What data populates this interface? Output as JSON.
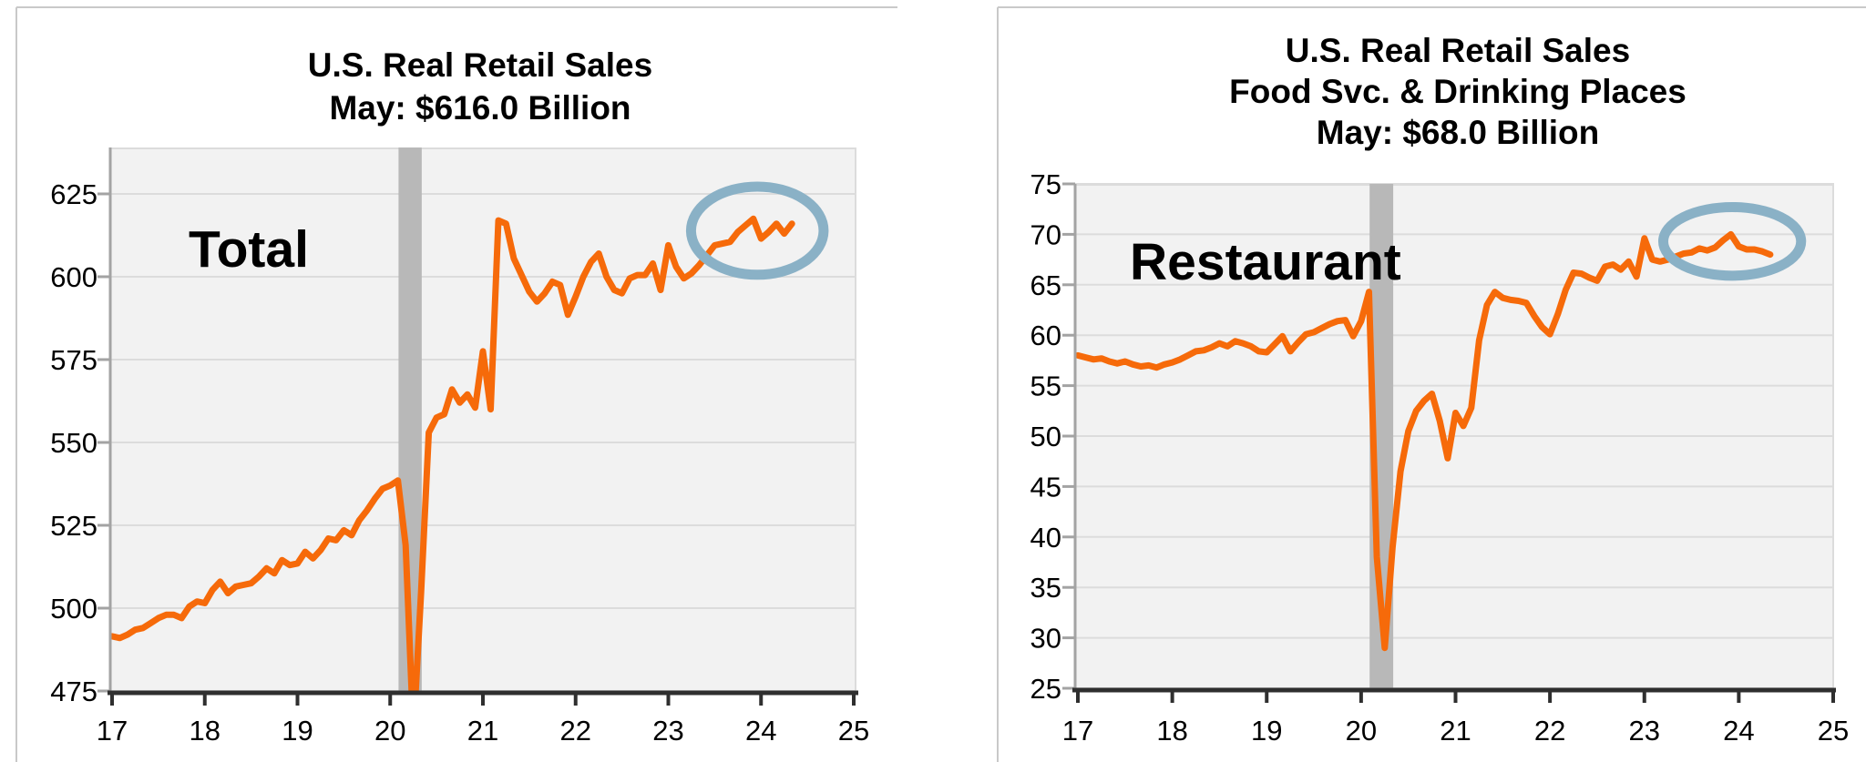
{
  "page": {
    "background": "#FFFFFF",
    "cell_border_color": "#C9C9C9",
    "plot_background": "#F2F2F2",
    "gridline_color": "#DCDCDC",
    "x_axis_color": "#2F2F2F",
    "y_axis_color": "#A3A3A3"
  },
  "chart_data": [
    {
      "type": "line",
      "title_lines": [
        "U.S. Real Retail Sales",
        "May: $616.0 Billion"
      ],
      "series_label": "Total",
      "series_name": "U.S. Real Retail Sales, Total, $ Billions, monthly",
      "x_start": "2017-01",
      "x_end": "2024-05",
      "x_frequency": "monthly",
      "latest": {
        "month": "May",
        "value_billions": 616.0
      },
      "xlim": [
        17,
        25
      ],
      "ylim": [
        475,
        639
      ],
      "xticks": [
        17,
        18,
        19,
        20,
        21,
        22,
        23,
        24,
        25
      ],
      "yticks": [
        475,
        500,
        525,
        550,
        575,
        600,
        625
      ],
      "grid": true,
      "line_color": "#F66A0A",
      "values": [
        491.5,
        491,
        492,
        493.5,
        494,
        495.5,
        497,
        498,
        498,
        497,
        500.5,
        502,
        501.5,
        505.5,
        508,
        504.5,
        506.5,
        507,
        507.5,
        509.5,
        512,
        510.5,
        514.5,
        513,
        513.5,
        517,
        515,
        517.5,
        521,
        520.5,
        523.5,
        522,
        526.5,
        529.5,
        533,
        536,
        537,
        538.5,
        519,
        462,
        505,
        553,
        557.5,
        558.5,
        566,
        562,
        564.5,
        560.5,
        577.5,
        560,
        617,
        616,
        605.5,
        600.5,
        595.5,
        592.5,
        595,
        598.5,
        597.5,
        588.5,
        594,
        600,
        604.5,
        607,
        600,
        596,
        595,
        599.5,
        600.5,
        600.5,
        604,
        596,
        609.5,
        603,
        599.5,
        601,
        603.5,
        606.5,
        609.5,
        610,
        610.5,
        613.5,
        615.5,
        617.5,
        611.5,
        613.5,
        616,
        613,
        616
      ],
      "recession_band": {
        "x_from": 20.09,
        "x_to": 20.34,
        "color": "#B8B8B8"
      },
      "highlight_ellipse": {
        "cx_year": 23.96,
        "cy_value": 613.9,
        "rx_years": 0.715,
        "ry_values": 13.3,
        "color": "#8AB1C6"
      }
    },
    {
      "type": "line",
      "title_lines": [
        "U.S. Real Retail Sales",
        "Food Svc. & Drinking Places",
        "May: $68.0 Billion"
      ],
      "series_label": "Restaurant",
      "series_name": "U.S. Real Retail Sales, Food Services & Drinking Places, $ Billions, monthly",
      "x_start": "2017-01",
      "x_end": "2024-05",
      "x_frequency": "monthly",
      "latest": {
        "month": "May",
        "value_billions": 68.0
      },
      "xlim": [
        17,
        25
      ],
      "ylim": [
        25,
        75
      ],
      "xticks": [
        17,
        18,
        19,
        20,
        21,
        22,
        23,
        24,
        25
      ],
      "yticks": [
        25,
        30,
        35,
        40,
        45,
        50,
        55,
        60,
        65,
        70,
        75
      ],
      "grid": true,
      "line_color": "#F66A0A",
      "values": [
        58.0,
        57.8,
        57.6,
        57.7,
        57.4,
        57.2,
        57.4,
        57.1,
        56.9,
        57.0,
        56.8,
        57.1,
        57.3,
        57.6,
        58.0,
        58.4,
        58.5,
        58.8,
        59.2,
        58.9,
        59.4,
        59.2,
        58.9,
        58.4,
        58.3,
        59.1,
        59.9,
        58.4,
        59.3,
        60.1,
        60.3,
        60.7,
        61.1,
        61.4,
        61.5,
        59.9,
        61.4,
        64.3,
        38.0,
        29.0,
        39.0,
        46.5,
        50.5,
        52.5,
        53.5,
        54.2,
        51.5,
        47.8,
        52.3,
        51.0,
        52.8,
        59.5,
        63.0,
        64.3,
        63.7,
        63.5,
        63.4,
        63.2,
        61.9,
        60.8,
        60.1,
        62.1,
        64.5,
        66.2,
        66.1,
        65.7,
        65.4,
        66.8,
        67.0,
        66.5,
        67.3,
        65.8,
        69.6,
        67.5,
        67.3,
        67.5,
        67.8,
        68.1,
        68.2,
        68.6,
        68.4,
        68.7,
        69.4,
        70.0,
        68.8,
        68.5,
        68.5,
        68.3,
        68.0
      ],
      "recession_band": {
        "x_from": 20.09,
        "x_to": 20.34,
        "color": "#B8B8B8"
      },
      "highlight_ellipse": {
        "cx_year": 23.93,
        "cy_value": 69.3,
        "rx_years": 0.73,
        "ry_values": 3.4,
        "color": "#8AB1C6"
      }
    }
  ]
}
